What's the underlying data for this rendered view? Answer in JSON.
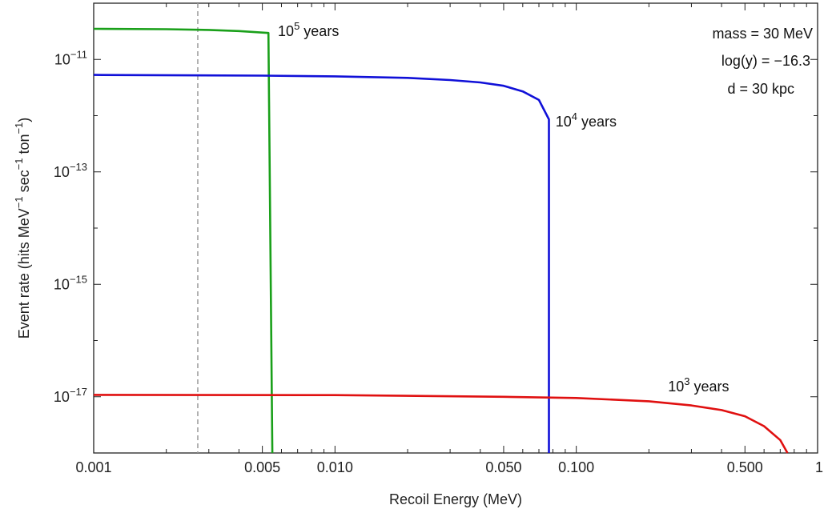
{
  "chart_data": {
    "type": "line",
    "xlabel": "Recoil Energy (MeV)",
    "ylabel": "Event rate (hits MeV−1 sec−1 ton−1)",
    "xscale": "log",
    "yscale": "log",
    "xlim": [
      0.001,
      1
    ],
    "ylim": [
      1e-18,
      1e-10
    ],
    "grid": false,
    "x_ticks": [
      {
        "value": 0.001,
        "label": "0.001"
      },
      {
        "value": 0.005,
        "label": "0.005"
      },
      {
        "value": 0.01,
        "label": "0.010"
      },
      {
        "value": 0.05,
        "label": "0.050"
      },
      {
        "value": 0.1,
        "label": "0.100"
      },
      {
        "value": 0.5,
        "label": "0.500"
      },
      {
        "value": 1,
        "label": "1"
      }
    ],
    "y_ticks": [
      {
        "value": 1e-11,
        "base": "10",
        "exp": "−11"
      },
      {
        "value": 1e-13,
        "base": "10",
        "exp": "−13"
      },
      {
        "value": 1e-15,
        "base": "10",
        "exp": "−15"
      },
      {
        "value": 1e-17,
        "base": "10",
        "exp": "−17"
      }
    ],
    "vline": {
      "x": 0.0027,
      "color": "#999999",
      "style": "dashed"
    },
    "annotation": {
      "lines": [
        "mass = 30 MeV",
        "log(y) = −16.3",
        "d = 30 kpc"
      ],
      "placement": "top-right"
    },
    "series": [
      {
        "name_base": "10",
        "name_exp": "5",
        "name_suffix": " years",
        "color": "#1aa01a",
        "points": [
          [
            0.001,
            3.5e-11
          ],
          [
            0.002,
            3.45e-11
          ],
          [
            0.003,
            3.35e-11
          ],
          [
            0.004,
            3.2e-11
          ],
          [
            0.0053,
            2.95e-11
          ],
          [
            0.0055,
            1e-18
          ]
        ],
        "label_anchor": [
          0.0058,
          2.6e-11
        ]
      },
      {
        "name_base": "10",
        "name_exp": "4",
        "name_suffix": " years",
        "color": "#1010d8",
        "points": [
          [
            0.001,
            5.3e-12
          ],
          [
            0.005,
            5.15e-12
          ],
          [
            0.01,
            5e-12
          ],
          [
            0.02,
            4.7e-12
          ],
          [
            0.03,
            4.3e-12
          ],
          [
            0.04,
            3.9e-12
          ],
          [
            0.05,
            3.4e-12
          ],
          [
            0.06,
            2.7e-12
          ],
          [
            0.07,
            1.9e-12
          ],
          [
            0.077,
            8.6e-13
          ],
          [
            0.077,
            1e-18
          ]
        ],
        "label_anchor": [
          0.082,
          6.4e-13
        ]
      },
      {
        "name_base": "10",
        "name_exp": "3",
        "name_suffix": " years",
        "color": "#e01010",
        "points": [
          [
            0.001,
            1.08e-17
          ],
          [
            0.01,
            1.07e-17
          ],
          [
            0.05,
            1e-17
          ],
          [
            0.1,
            9.5e-18
          ],
          [
            0.2,
            8.3e-18
          ],
          [
            0.3,
            7e-18
          ],
          [
            0.4,
            5.8e-18
          ],
          [
            0.5,
            4.5e-18
          ],
          [
            0.6,
            3e-18
          ],
          [
            0.7,
            1.7e-18
          ],
          [
            0.75,
            1e-18
          ]
        ],
        "label_anchor": [
          0.24,
          1.25e-17
        ]
      }
    ]
  }
}
